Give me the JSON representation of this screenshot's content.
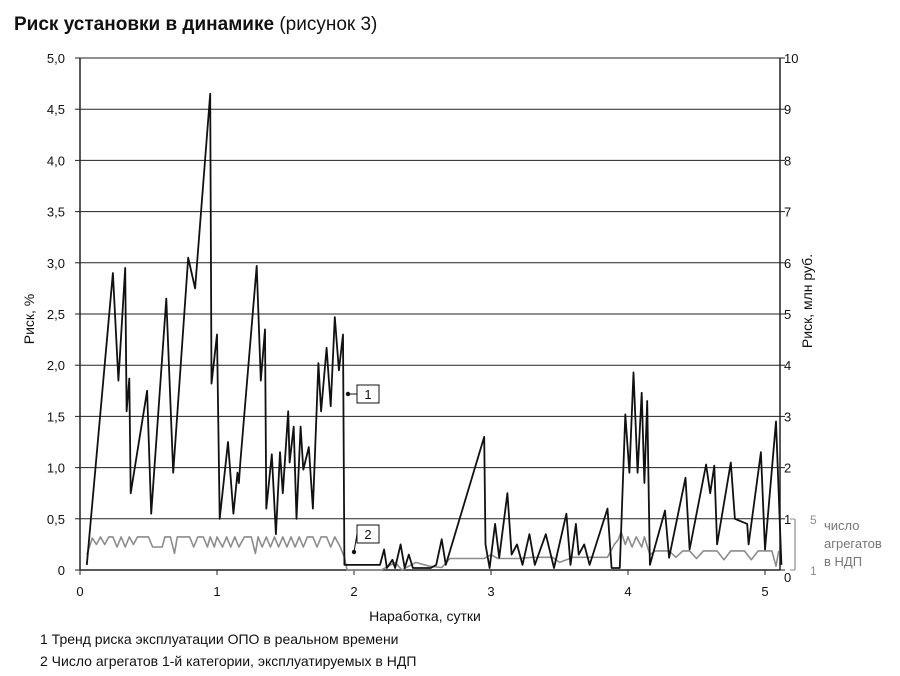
{
  "header": {
    "title_bold": "Риск установки в динамике",
    "title_rest": "(рисунок 3)"
  },
  "legend": {
    "item1": "1 Тренд риска эксплуатации ОПО в реальном времени",
    "item2": "2 Число агрегатов 1-й категории, эксплуатируемых в НДП"
  },
  "colors": {
    "series1": "#111111",
    "series2": "#8c8c8c",
    "grid": "#222222"
  },
  "chart_data": {
    "type": "line",
    "title": "Риск установки в динамике (рисунок 3)",
    "xlabel": "Наработка, сутки",
    "ylabel_left": "Риск, %",
    "ylabel_right": "Риск, млн руб.",
    "ylabel_right2": "число агрегатов в НДП",
    "xlim": [
      0,
      5.1
    ],
    "ylim_left": [
      0,
      5
    ],
    "ylim_right": [
      0,
      10
    ],
    "ylim_right2": [
      1,
      5
    ],
    "x_ticks": [
      "0",
      "1",
      "2",
      "3",
      "4",
      "5"
    ],
    "y_ticks_left": [
      "0",
      "0,5",
      "1,0",
      "1,5",
      "2,0",
      "2,5",
      "3,0",
      "3,5",
      "4,0",
      "4,5",
      "5,0"
    ],
    "y_ticks_right": [
      "0",
      "1",
      "2",
      "3",
      "4",
      "5",
      "6",
      "7",
      "8",
      "9",
      "10"
    ],
    "y_ticks_right2": [
      "1",
      "5"
    ],
    "grid": "horizontal",
    "series": [
      {
        "callout": "1",
        "axis": "left",
        "points": [
          [
            0.05,
            0.05
          ],
          [
            0.24,
            2.9
          ],
          [
            0.28,
            1.85
          ],
          [
            0.33,
            2.95
          ],
          [
            0.34,
            1.55
          ],
          [
            0.36,
            1.87
          ],
          [
            0.37,
            0.75
          ],
          [
            0.49,
            1.75
          ],
          [
            0.52,
            0.55
          ],
          [
            0.63,
            2.65
          ],
          [
            0.68,
            0.95
          ],
          [
            0.79,
            3.05
          ],
          [
            0.84,
            2.75
          ],
          [
            0.95,
            4.65
          ],
          [
            0.96,
            1.82
          ],
          [
            1.0,
            2.3
          ],
          [
            1.02,
            0.5
          ],
          [
            1.08,
            1.25
          ],
          [
            1.12,
            0.55
          ],
          [
            1.15,
            0.95
          ],
          [
            1.16,
            0.85
          ],
          [
            1.17,
            1.05
          ],
          [
            1.29,
            2.97
          ],
          [
            1.32,
            1.85
          ],
          [
            1.35,
            2.35
          ],
          [
            1.36,
            0.6
          ],
          [
            1.4,
            1.13
          ],
          [
            1.43,
            0.35
          ],
          [
            1.46,
            1.15
          ],
          [
            1.48,
            0.75
          ],
          [
            1.52,
            1.55
          ],
          [
            1.53,
            1.05
          ],
          [
            1.56,
            1.4
          ],
          [
            1.58,
            0.5
          ],
          [
            1.61,
            1.4
          ],
          [
            1.63,
            0.98
          ],
          [
            1.67,
            1.2
          ],
          [
            1.7,
            0.6
          ],
          [
            1.74,
            2.02
          ],
          [
            1.76,
            1.55
          ],
          [
            1.8,
            2.17
          ],
          [
            1.83,
            1.6
          ],
          [
            1.86,
            2.47
          ],
          [
            1.89,
            1.95
          ],
          [
            1.92,
            2.3
          ],
          [
            1.93,
            0.05
          ],
          [
            2.19,
            0.05
          ],
          [
            2.22,
            0.2
          ],
          [
            2.24,
            0.02
          ],
          [
            2.28,
            0.1
          ],
          [
            2.3,
            0.02
          ],
          [
            2.34,
            0.25
          ],
          [
            2.37,
            0.02
          ],
          [
            2.4,
            0.15
          ],
          [
            2.43,
            0.02
          ],
          [
            2.5,
            0.02
          ],
          [
            2.56,
            0.02
          ],
          [
            2.6,
            0.05
          ],
          [
            2.64,
            0.3
          ],
          [
            2.67,
            0.05
          ],
          [
            2.95,
            1.3
          ],
          [
            2.96,
            0.25
          ],
          [
            2.99,
            0.02
          ],
          [
            3.03,
            0.45
          ],
          [
            3.06,
            0.12
          ],
          [
            3.12,
            0.75
          ],
          [
            3.15,
            0.15
          ],
          [
            3.19,
            0.25
          ],
          [
            3.23,
            0.05
          ],
          [
            3.28,
            0.35
          ],
          [
            3.32,
            0.05
          ],
          [
            3.4,
            0.35
          ],
          [
            3.46,
            0.02
          ],
          [
            3.55,
            0.55
          ],
          [
            3.58,
            0.05
          ],
          [
            3.62,
            0.45
          ],
          [
            3.64,
            0.15
          ],
          [
            3.68,
            0.25
          ],
          [
            3.72,
            0.05
          ],
          [
            3.85,
            0.6
          ],
          [
            3.88,
            0.02
          ],
          [
            3.94,
            0.02
          ],
          [
            3.98,
            1.52
          ],
          [
            4.01,
            0.95
          ],
          [
            4.04,
            1.93
          ],
          [
            4.07,
            0.95
          ],
          [
            4.1,
            1.73
          ],
          [
            4.12,
            0.85
          ],
          [
            4.14,
            1.65
          ],
          [
            4.16,
            0.05
          ],
          [
            4.27,
            0.58
          ],
          [
            4.3,
            0.12
          ],
          [
            4.42,
            0.9
          ],
          [
            4.45,
            0.2
          ],
          [
            4.57,
            1.03
          ],
          [
            4.6,
            0.75
          ],
          [
            4.63,
            1.02
          ],
          [
            4.65,
            0.25
          ],
          [
            4.75,
            1.05
          ],
          [
            4.78,
            0.5
          ],
          [
            4.87,
            0.45
          ],
          [
            4.88,
            0.25
          ],
          [
            4.97,
            1.15
          ],
          [
            5.0,
            0.2
          ],
          [
            5.08,
            1.45
          ],
          [
            5.12,
            0.05
          ]
        ]
      },
      {
        "callout": "2",
        "axis": "right2",
        "points": [
          [
            0.05,
            2.2
          ],
          [
            0.09,
            3.5
          ],
          [
            0.12,
            3.0
          ],
          [
            0.15,
            3.6
          ],
          [
            0.18,
            3.0
          ],
          [
            0.21,
            3.6
          ],
          [
            0.24,
            3.6
          ],
          [
            0.27,
            2.8
          ],
          [
            0.3,
            3.6
          ],
          [
            0.33,
            2.8
          ],
          [
            0.36,
            3.6
          ],
          [
            0.39,
            3.0
          ],
          [
            0.42,
            3.6
          ],
          [
            0.45,
            3.6
          ],
          [
            0.5,
            3.6
          ],
          [
            0.53,
            2.8
          ],
          [
            0.6,
            2.8
          ],
          [
            0.62,
            3.6
          ],
          [
            0.66,
            3.6
          ],
          [
            0.69,
            2.3
          ],
          [
            0.71,
            3.6
          ],
          [
            0.8,
            3.6
          ],
          [
            0.83,
            2.8
          ],
          [
            0.86,
            3.6
          ],
          [
            0.9,
            3.6
          ],
          [
            0.93,
            2.8
          ],
          [
            0.95,
            3.6
          ],
          [
            0.98,
            2.8
          ],
          [
            1.0,
            3.6
          ],
          [
            1.04,
            2.8
          ],
          [
            1.07,
            3.6
          ],
          [
            1.1,
            2.8
          ],
          [
            1.13,
            3.6
          ],
          [
            1.16,
            2.8
          ],
          [
            1.2,
            3.6
          ],
          [
            1.25,
            3.6
          ],
          [
            1.28,
            2.3
          ],
          [
            1.3,
            3.6
          ],
          [
            1.33,
            2.8
          ],
          [
            1.36,
            3.6
          ],
          [
            1.39,
            2.8
          ],
          [
            1.42,
            3.6
          ],
          [
            1.45,
            2.8
          ],
          [
            1.48,
            3.6
          ],
          [
            1.51,
            2.8
          ],
          [
            1.54,
            3.6
          ],
          [
            1.57,
            2.8
          ],
          [
            1.6,
            3.6
          ],
          [
            1.63,
            2.8
          ],
          [
            1.66,
            3.6
          ],
          [
            1.7,
            3.6
          ],
          [
            1.73,
            2.8
          ],
          [
            1.76,
            3.6
          ],
          [
            1.8,
            3.6
          ],
          [
            1.83,
            2.8
          ],
          [
            1.86,
            3.6
          ],
          [
            1.9,
            2.8
          ],
          [
            1.93,
            2.0
          ],
          [
            1.95,
            1.0
          ],
          [
            2.0,
            1.0
          ],
          [
            2.2,
            1.0
          ],
          [
            2.3,
            1.6
          ],
          [
            2.35,
            1.0
          ],
          [
            2.45,
            1.6
          ],
          [
            2.55,
            1.3
          ],
          [
            2.64,
            1.2
          ],
          [
            2.7,
            1.9
          ],
          [
            2.95,
            1.9
          ],
          [
            3.0,
            2.2
          ],
          [
            3.05,
            1.9
          ],
          [
            3.2,
            1.9
          ],
          [
            3.3,
            2.0
          ],
          [
            3.45,
            2.0
          ],
          [
            3.5,
            1.6
          ],
          [
            3.6,
            2.0
          ],
          [
            3.85,
            2.0
          ],
          [
            3.9,
            3.0
          ],
          [
            3.93,
            3.4
          ],
          [
            3.95,
            4.0
          ],
          [
            3.98,
            3.0
          ],
          [
            4.0,
            3.6
          ],
          [
            4.03,
            2.8
          ],
          [
            4.06,
            3.6
          ],
          [
            4.1,
            2.8
          ],
          [
            4.12,
            3.6
          ],
          [
            4.16,
            2.2
          ],
          [
            4.2,
            2.5
          ],
          [
            4.3,
            2.5
          ],
          [
            4.35,
            2.0
          ],
          [
            4.4,
            2.5
          ],
          [
            4.45,
            2.5
          ],
          [
            4.5,
            1.9
          ],
          [
            4.55,
            2.5
          ],
          [
            4.65,
            2.5
          ],
          [
            4.7,
            1.8
          ],
          [
            4.75,
            2.5
          ],
          [
            4.85,
            2.5
          ],
          [
            4.9,
            1.8
          ],
          [
            4.95,
            2.5
          ],
          [
            5.05,
            2.5
          ],
          [
            5.08,
            1.3
          ],
          [
            5.1,
            2.5
          ]
        ]
      }
    ]
  }
}
